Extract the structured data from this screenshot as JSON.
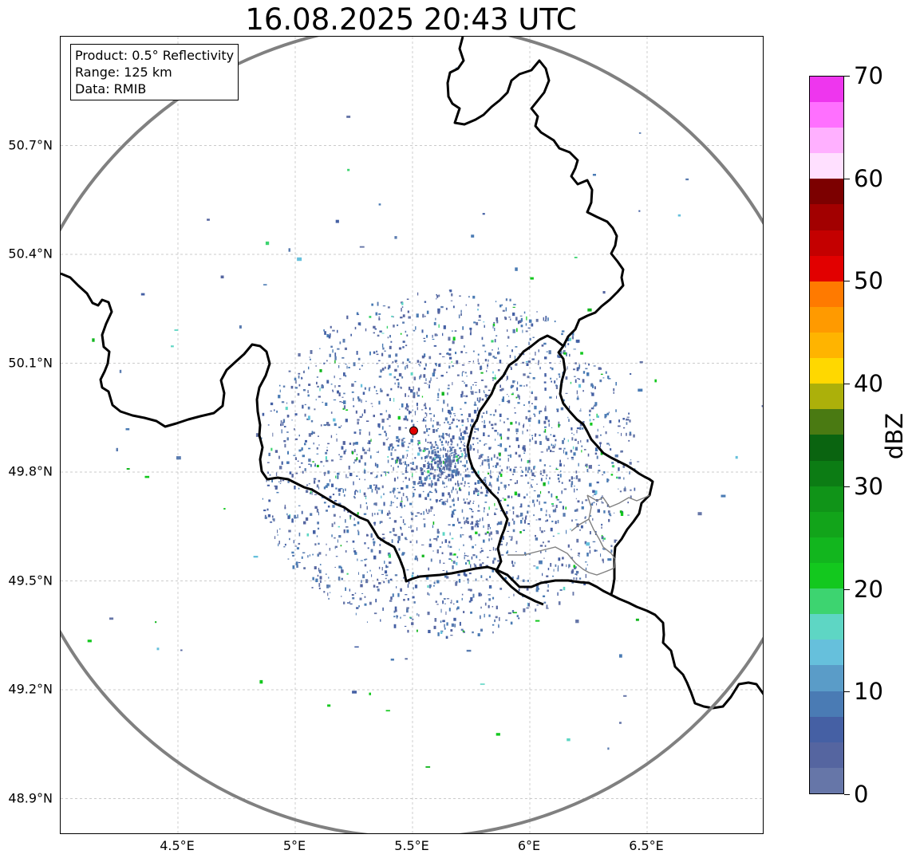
{
  "title": "16.08.2025 20:43 UTC",
  "info": {
    "product": "Product: 0.5° Reflectivity",
    "range": "Range: 125 km",
    "data": "Data: RMIB"
  },
  "map": {
    "lon_range": [
      4.0,
      7.0
    ],
    "lat_range": [
      48.8,
      51.0
    ],
    "radar_site": {
      "lon": 5.505,
      "lat": 49.914
    },
    "range_ring_color": "#808080",
    "border_color": "#000000",
    "x_ticks": [
      "4.5°E",
      "5°E",
      "5.5°E",
      "6°E",
      "6.5°E"
    ],
    "x_tick_values": [
      4.5,
      5.0,
      5.5,
      6.0,
      6.5
    ],
    "y_ticks": [
      "50.7°N",
      "50.4°N",
      "50.1°N",
      "49.8°N",
      "49.5°N",
      "49.2°N",
      "48.9°N"
    ],
    "y_tick_values": [
      50.7,
      50.4,
      50.1,
      49.8,
      49.5,
      49.2,
      48.9
    ]
  },
  "colorbar": {
    "label": "dBZ",
    "min": 0,
    "max": 70,
    "ticks": [
      "0",
      "10",
      "20",
      "30",
      "40",
      "50",
      "60",
      "70"
    ],
    "tick_values": [
      0,
      10,
      20,
      30,
      40,
      50,
      60,
      70
    ],
    "colors": [
      "#6676a8",
      "#5565a0",
      "#4560a4",
      "#4a7bb4",
      "#5a9cc8",
      "#66c0dc",
      "#5ed6c4",
      "#3dd470",
      "#13c81e",
      "#12b61e",
      "#12a41a",
      "#109418",
      "#0c7c14",
      "#0a6410",
      "#4a7a12",
      "#acb00a",
      "#ffd800",
      "#ffb400",
      "#ff9a00",
      "#ff7a00",
      "#e20000",
      "#c40000",
      "#a20000",
      "#7c0000",
      "#ffe0ff",
      "#ffb0ff",
      "#ff70ff",
      "#ee36ee"
    ]
  }
}
